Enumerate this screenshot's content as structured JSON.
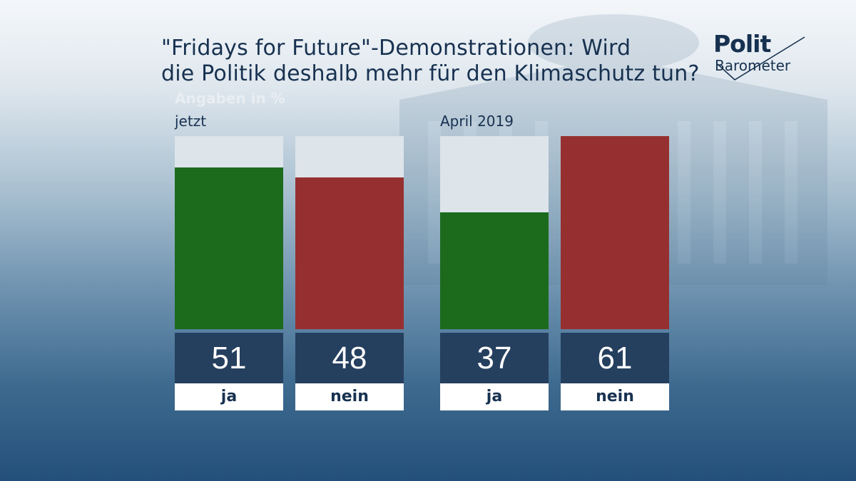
{
  "header": {
    "title_line1": "\"Fridays for Future\"-Demonstrationen: Wird",
    "title_line2": "die Politik deshalb mehr für den Klimaschutz tun?",
    "subtitle": "Angaben in %"
  },
  "logo": {
    "line1": "Polit",
    "line2": "Barometer"
  },
  "colors": {
    "ja": "#1c6b1c",
    "nein": "#963030",
    "value_box": "#253f5e",
    "track": "#dde4ea"
  },
  "chart_data": {
    "type": "bar",
    "title": "\"Fridays for Future\"-Demonstrationen: Wird die Politik deshalb mehr für den Klimaschutz tun?",
    "subtitle": "Angaben in %",
    "categories": [
      "ja",
      "nein"
    ],
    "groups": [
      {
        "name": "jetzt",
        "values": [
          51,
          48
        ]
      },
      {
        "name": "April 2019",
        "values": [
          37,
          61
        ]
      }
    ],
    "ylim": [
      0,
      61
    ],
    "grid": false,
    "legend": "none"
  }
}
